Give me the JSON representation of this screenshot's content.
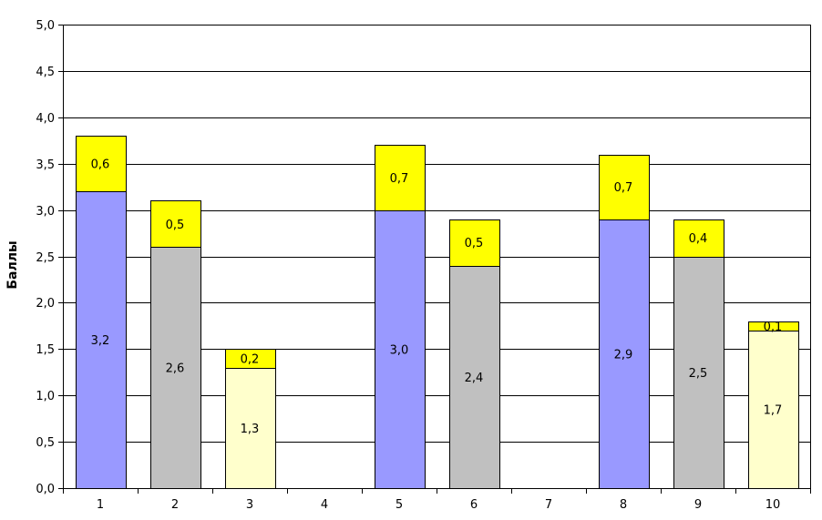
{
  "chart_data": {
    "type": "bar",
    "stacked": true,
    "title": "",
    "xlabel": "",
    "ylabel": "Баллы",
    "ylim": [
      0,
      5
    ],
    "ytick_step": 0.5,
    "yticks": [
      "0,0",
      "0,5",
      "1,0",
      "1,5",
      "2,0",
      "2,5",
      "3,0",
      "3,5",
      "4,0",
      "4,5",
      "5,0"
    ],
    "grid": true,
    "legend": "none",
    "categories": [
      "1",
      "2",
      "3",
      "4",
      "5",
      "6",
      "7",
      "8",
      "9",
      "10"
    ],
    "series": [
      {
        "values": [
          3.2,
          2.6,
          1.3,
          null,
          3.0,
          2.4,
          null,
          2.9,
          2.5,
          1.7
        ],
        "labels": [
          "3,2",
          "2,6",
          "1,3",
          "",
          "3,0",
          "2,4",
          "",
          "2,9",
          "2,5",
          "1,7"
        ],
        "colors": [
          "#9999ff",
          "#c0c0c0",
          "#ffffcc",
          null,
          "#9999ff",
          "#c0c0c0",
          null,
          "#9999ff",
          "#c0c0c0",
          "#ffffcc"
        ]
      },
      {
        "values": [
          0.6,
          0.5,
          0.2,
          null,
          0.7,
          0.5,
          null,
          0.7,
          0.4,
          0.1
        ],
        "labels": [
          "0,6",
          "0,5",
          "0,2",
          "",
          "0,7",
          "0,5",
          "",
          "0,7",
          "0,4",
          "0,1"
        ],
        "color": "#ffff00"
      }
    ]
  }
}
